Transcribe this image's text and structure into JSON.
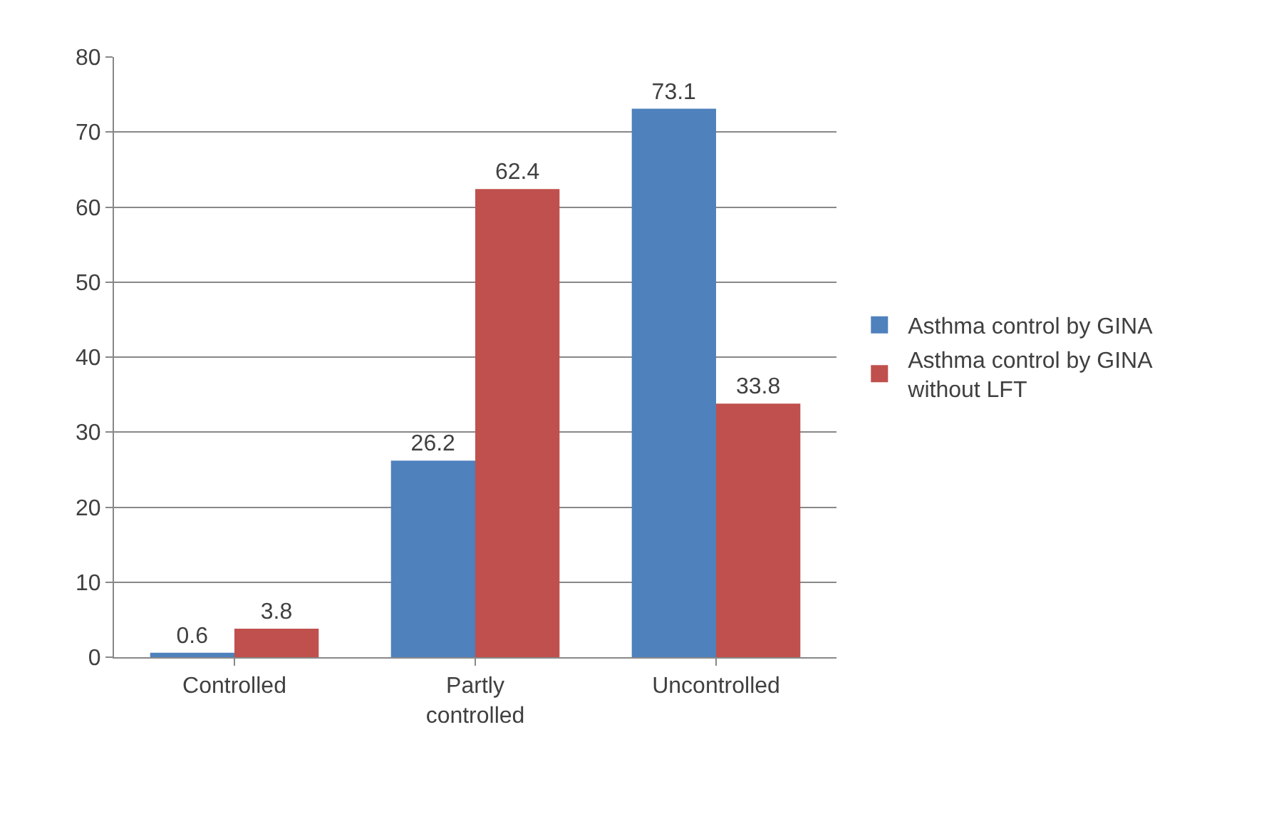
{
  "chart_data": {
    "type": "bar",
    "categories": [
      "Controlled",
      "Partly controlled",
      "Uncontrolled"
    ],
    "series": [
      {
        "name": "Asthma control by GINA",
        "color": "#4f81bd",
        "values": [
          0.6,
          26.2,
          73.1
        ]
      },
      {
        "name": "Asthma control by GINA without LFT",
        "color": "#c0504d",
        "values": [
          3.8,
          62.4,
          33.8
        ]
      }
    ],
    "ylim": [
      0,
      80
    ],
    "yticks": [
      0,
      10,
      20,
      30,
      40,
      50,
      60,
      70,
      80
    ],
    "grid": "y",
    "legend": "right",
    "data_labels": true
  }
}
